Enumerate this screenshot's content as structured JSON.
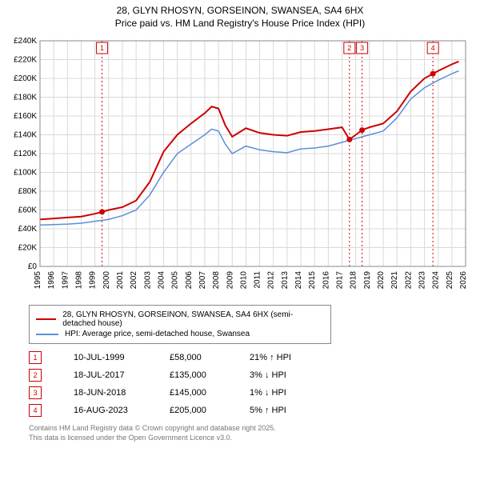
{
  "title_line1": "28, GLYN RHOSYN, GORSEINON, SWANSEA, SA4 6HX",
  "title_line2": "Price paid vs. HM Land Registry's House Price Index (HPI)",
  "chart": {
    "type": "line",
    "background_color": "#ffffff",
    "plot_border_color": "#888888",
    "grid_color": "#d9d9d9",
    "x": {
      "min": 1995,
      "max": 2026,
      "ticks": [
        1995,
        1996,
        1997,
        1998,
        1999,
        2000,
        2001,
        2002,
        2003,
        2004,
        2005,
        2006,
        2007,
        2008,
        2009,
        2010,
        2011,
        2012,
        2013,
        2014,
        2015,
        2016,
        2017,
        2018,
        2019,
        2020,
        2021,
        2022,
        2023,
        2024,
        2025,
        2026
      ]
    },
    "y": {
      "min": 0,
      "max": 240000,
      "ticks": [
        0,
        20000,
        40000,
        60000,
        80000,
        100000,
        120000,
        140000,
        160000,
        180000,
        200000,
        220000,
        240000
      ],
      "tick_labels": [
        "£0",
        "£20K",
        "£40K",
        "£60K",
        "£80K",
        "£100K",
        "£120K",
        "£140K",
        "£160K",
        "£180K",
        "£200K",
        "£220K",
        "£240K"
      ]
    },
    "marker_line_color": "#cc0000",
    "marker_box_border": "#cc0000",
    "marker_dot_color": "#cc0000",
    "series": [
      {
        "name": "28, GLYN RHOSYN, GORSEINON, SWANSEA, SA4 6HX (semi-detached house)",
        "color": "#cc0000",
        "line_width": 2,
        "points": [
          [
            1995,
            50000
          ],
          [
            1996,
            51000
          ],
          [
            1997,
            52000
          ],
          [
            1998,
            53000
          ],
          [
            1999,
            56000
          ],
          [
            1999.52,
            58000
          ],
          [
            2000,
            60000
          ],
          [
            2001,
            63000
          ],
          [
            2002,
            70000
          ],
          [
            2003,
            90000
          ],
          [
            2004,
            122000
          ],
          [
            2005,
            140000
          ],
          [
            2006,
            152000
          ],
          [
            2007,
            163000
          ],
          [
            2007.5,
            170000
          ],
          [
            2008,
            168000
          ],
          [
            2008.5,
            150000
          ],
          [
            2009,
            138000
          ],
          [
            2010,
            147000
          ],
          [
            2011,
            142000
          ],
          [
            2012,
            140000
          ],
          [
            2013,
            139000
          ],
          [
            2014,
            143000
          ],
          [
            2015,
            144000
          ],
          [
            2016,
            146000
          ],
          [
            2017,
            148000
          ],
          [
            2017.54,
            135000
          ],
          [
            2018,
            140000
          ],
          [
            2018.46,
            145000
          ],
          [
            2019,
            148000
          ],
          [
            2020,
            152000
          ],
          [
            2021,
            165000
          ],
          [
            2022,
            186000
          ],
          [
            2023,
            200000
          ],
          [
            2023.62,
            205000
          ],
          [
            2024,
            208000
          ],
          [
            2025,
            215000
          ],
          [
            2025.5,
            218000
          ]
        ]
      },
      {
        "name": "HPI: Average price, semi-detached house, Swansea",
        "color": "#5b8fd6",
        "line_width": 1.5,
        "points": [
          [
            1995,
            44000
          ],
          [
            1996,
            44500
          ],
          [
            1997,
            45000
          ],
          [
            1998,
            46000
          ],
          [
            1999,
            48000
          ],
          [
            2000,
            50000
          ],
          [
            2001,
            54000
          ],
          [
            2002,
            60000
          ],
          [
            2003,
            76000
          ],
          [
            2004,
            100000
          ],
          [
            2005,
            120000
          ],
          [
            2006,
            130000
          ],
          [
            2007,
            140000
          ],
          [
            2007.5,
            146000
          ],
          [
            2008,
            144000
          ],
          [
            2008.5,
            130000
          ],
          [
            2009,
            120000
          ],
          [
            2010,
            128000
          ],
          [
            2011,
            124000
          ],
          [
            2012,
            122000
          ],
          [
            2013,
            121000
          ],
          [
            2014,
            125000
          ],
          [
            2015,
            126000
          ],
          [
            2016,
            128000
          ],
          [
            2017,
            132000
          ],
          [
            2018,
            136000
          ],
          [
            2019,
            140000
          ],
          [
            2020,
            144000
          ],
          [
            2021,
            158000
          ],
          [
            2022,
            178000
          ],
          [
            2023,
            190000
          ],
          [
            2024,
            198000
          ],
          [
            2025,
            205000
          ],
          [
            2025.5,
            208000
          ]
        ]
      }
    ],
    "markers": [
      {
        "n": "1",
        "x": 1999.52,
        "y": 58000
      },
      {
        "n": "2",
        "x": 2017.54,
        "y": 135000
      },
      {
        "n": "3",
        "x": 2018.46,
        "y": 145000
      },
      {
        "n": "4",
        "x": 2023.62,
        "y": 205000
      }
    ]
  },
  "legend": {
    "items": [
      {
        "color": "#cc0000",
        "label": "28, GLYN RHOSYN, GORSEINON, SWANSEA, SA4 6HX (semi-detached house)"
      },
      {
        "color": "#5b8fd6",
        "label": "HPI: Average price, semi-detached house, Swansea"
      }
    ]
  },
  "marker_table": [
    {
      "n": "1",
      "date": "10-JUL-1999",
      "price": "£58,000",
      "hpi": "21% ↑ HPI"
    },
    {
      "n": "2",
      "date": "18-JUL-2017",
      "price": "£135,000",
      "hpi": "3% ↓ HPI"
    },
    {
      "n": "3",
      "date": "18-JUN-2018",
      "price": "£145,000",
      "hpi": "1% ↓ HPI"
    },
    {
      "n": "4",
      "date": "16-AUG-2023",
      "price": "£205,000",
      "hpi": "5% ↑ HPI"
    }
  ],
  "footnote_line1": "Contains HM Land Registry data © Crown copyright and database right 2025.",
  "footnote_line2": "This data is licensed under the Open Government Licence v3.0."
}
